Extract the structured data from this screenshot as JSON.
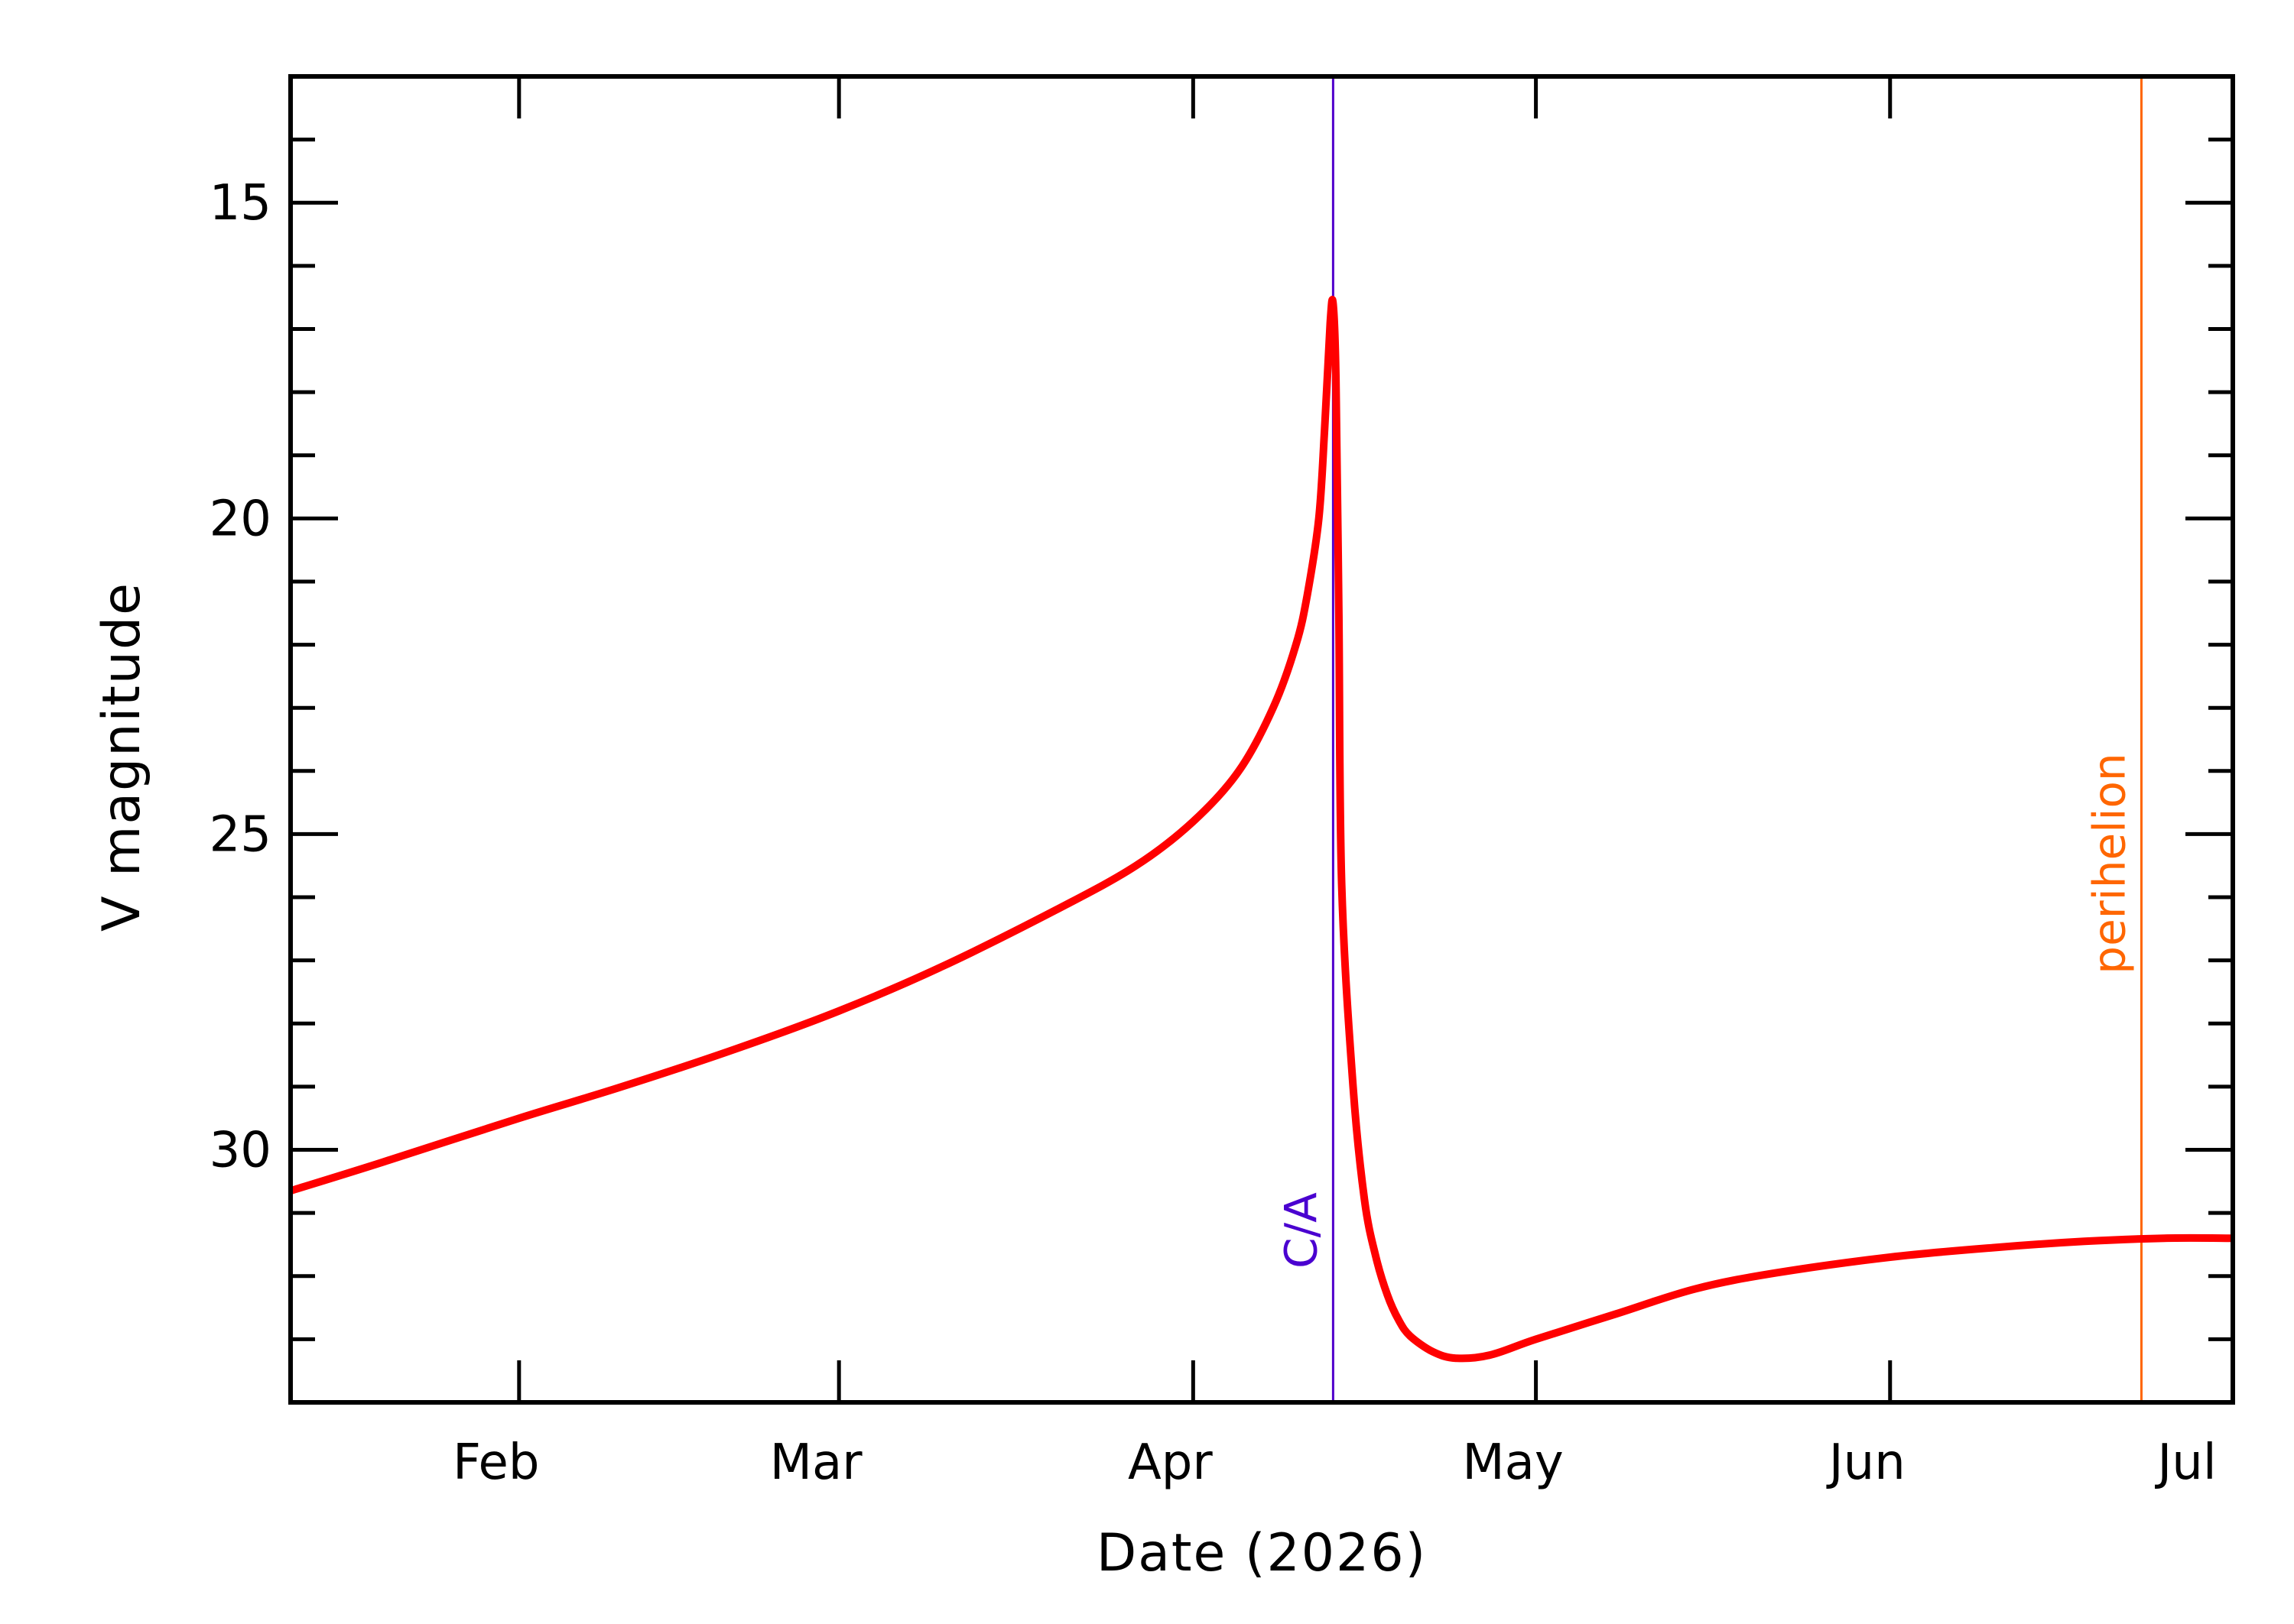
{
  "chart_data": {
    "type": "line",
    "title": "",
    "xlabel": "Date (2026)",
    "ylabel": "V magnitude",
    "x_range": [
      "2026-01-12",
      "2026-07-01"
    ],
    "ylim": [
      34,
      13
    ],
    "y_inverted": true,
    "y_major_ticks": [
      15,
      20,
      25,
      30
    ],
    "y_minor_step": 1,
    "x_ticks": [
      {
        "date": "2026-02-01",
        "label": "Feb"
      },
      {
        "date": "2026-03-01",
        "label": "Mar"
      },
      {
        "date": "2026-04-01",
        "label": "Apr"
      },
      {
        "date": "2026-05-01",
        "label": "May"
      },
      {
        "date": "2026-06-01",
        "label": "Jun"
      },
      {
        "date": "2026-07-01",
        "label": "Jul"
      }
    ],
    "grid": false,
    "legend": "none",
    "series": [
      {
        "color": "#ff0000",
        "points": [
          [
            "2026-01-12",
            30.65
          ],
          [
            "2026-01-20",
            30.2
          ],
          [
            "2026-02-01",
            29.5
          ],
          [
            "2026-02-10",
            29.0
          ],
          [
            "2026-02-20",
            28.4
          ],
          [
            "2026-03-01",
            27.8
          ],
          [
            "2026-03-10",
            27.1
          ],
          [
            "2026-03-20",
            26.2
          ],
          [
            "2026-03-27",
            25.5
          ],
          [
            "2026-04-01",
            24.8
          ],
          [
            "2026-04-05",
            24.0
          ],
          [
            "2026-04-08",
            23.0
          ],
          [
            "2026-04-10",
            22.0
          ],
          [
            "2026-04-11",
            21.2
          ],
          [
            "2026-04-12",
            20.0
          ],
          [
            "2026-04-12T12:00",
            18.6
          ],
          [
            "2026-04-13",
            16.9
          ],
          [
            "2026-04-13T06:00",
            16.6
          ],
          [
            "2026-04-13T12:00",
            17.8
          ],
          [
            "2026-04-13T18:00",
            21.5
          ],
          [
            "2026-04-14",
            25.8
          ],
          [
            "2026-04-15",
            29.0
          ],
          [
            "2026-04-16",
            30.8
          ],
          [
            "2026-04-17",
            31.7
          ],
          [
            "2026-04-18",
            32.3
          ],
          [
            "2026-04-19",
            32.7
          ],
          [
            "2026-04-20",
            32.95
          ],
          [
            "2026-04-22",
            33.2
          ],
          [
            "2026-04-24",
            33.3
          ],
          [
            "2026-04-27",
            33.25
          ],
          [
            "2026-05-01",
            33.0
          ],
          [
            "2026-05-08",
            32.6
          ],
          [
            "2026-05-15",
            32.2
          ],
          [
            "2026-05-22",
            31.95
          ],
          [
            "2026-06-01",
            31.7
          ],
          [
            "2026-06-10",
            31.55
          ],
          [
            "2026-06-18",
            31.45
          ],
          [
            "2026-06-25",
            31.4
          ],
          [
            "2026-07-01",
            31.4
          ]
        ]
      }
    ],
    "annotations": [
      {
        "label": "C/A",
        "date": "2026-04-13T06:00",
        "color": "#5000cc",
        "text_color": "#4a00d0"
      },
      {
        "label": "perihelion",
        "date": "2026-06-23",
        "color": "#ff6600",
        "text_color": "#ff6600"
      }
    ],
    "colors": {
      "axis": "#000000",
      "line": "#ff0000",
      "background": "#ffffff"
    }
  }
}
